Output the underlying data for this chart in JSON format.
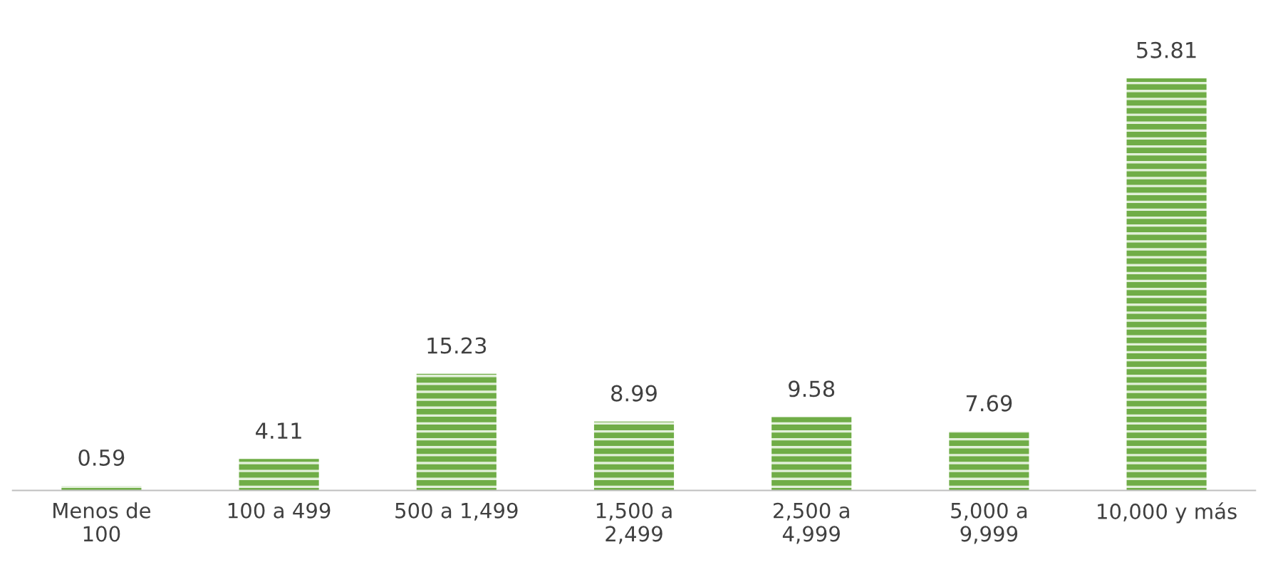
{
  "chart_data": {
    "type": "bar",
    "categories": [
      "Menos de\n100",
      "100 a 499",
      "500 a 1,499",
      "1,500 a\n2,499",
      "2,500 a\n4,999",
      "5,000 a\n9,999",
      "10,000 y más"
    ],
    "values": [
      0.59,
      4.11,
      15.23,
      8.99,
      9.58,
      7.69,
      53.81
    ],
    "color": "#70ad47",
    "data_labels": true,
    "grid": false,
    "legend": false
  }
}
